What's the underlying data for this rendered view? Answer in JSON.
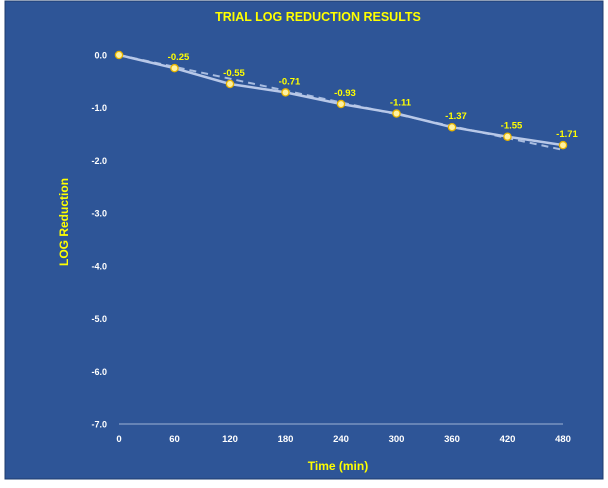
{
  "chart_data": {
    "type": "line",
    "title": "TRIAL LOG REDUCTION  RESULTS",
    "xlabel": "Time (min)",
    "ylabel": "LOG Reduction",
    "x": [
      0,
      60,
      120,
      180,
      240,
      300,
      360,
      420,
      480
    ],
    "x_ticks": [
      "0",
      "60",
      "120",
      "180",
      "240",
      "300",
      "360",
      "420",
      "480"
    ],
    "xlim": [
      0,
      480
    ],
    "y_ticks": [
      "0.0",
      "-1.0",
      "-2.0",
      "-3.0",
      "-4.0",
      "-5.0",
      "-6.0",
      "-7.0"
    ],
    "ylim": [
      -7.0,
      0.0
    ],
    "grid": false,
    "legend": "none",
    "series": [
      {
        "values": [
          0.0,
          -0.25,
          -0.55,
          -0.71,
          -0.93,
          -1.11,
          -1.37,
          -1.55,
          -1.71
        ],
        "labels": [
          "",
          "-0.25",
          "-0.55",
          "-0.71",
          "-0.93",
          "-1.11",
          "-1.37",
          "-1.55",
          "-1.71"
        ]
      }
    ],
    "trendline": {
      "type": "linear",
      "style": "dashed",
      "from": [
        0,
        0.0
      ],
      "to": [
        480,
        -1.8
      ]
    },
    "colors": {
      "background": "#2e5597",
      "frame": "#1f3c6e",
      "text_yellow": "#ffff00",
      "tick_white": "#ffffff",
      "line": "#b8c8e8",
      "trend": "#a8bcdf",
      "marker_edge": "#e8b400",
      "marker_fill": "#fff2a0"
    }
  }
}
